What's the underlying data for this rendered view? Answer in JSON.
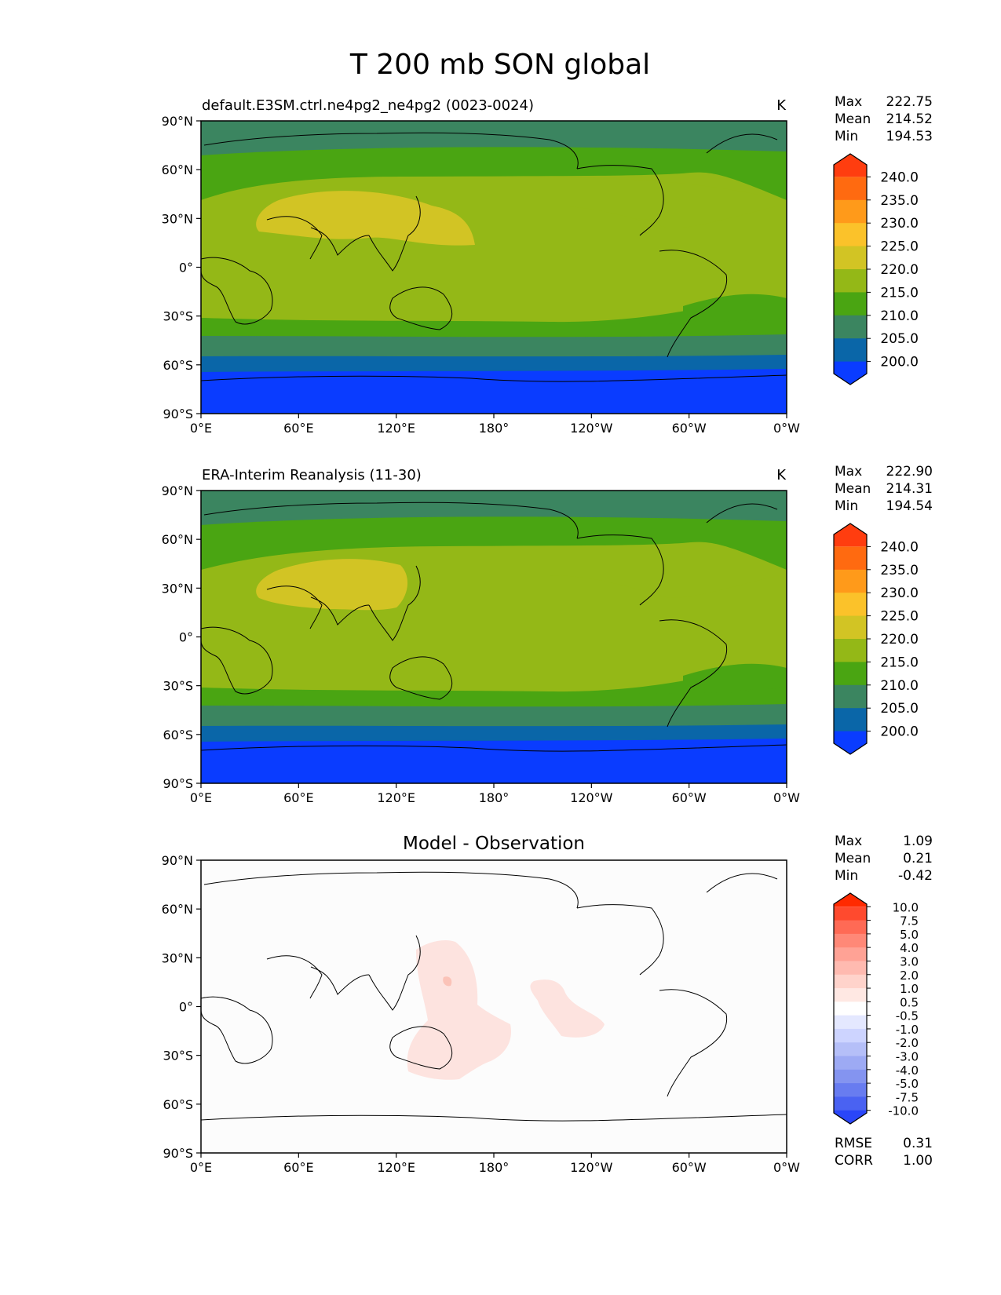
{
  "figure": {
    "title": "T 200 mb SON global"
  },
  "axes": {
    "lon_ticks": [
      "0°E",
      "60°E",
      "120°E",
      "180°",
      "120°W",
      "60°W",
      "0°W"
    ],
    "lat_ticks": [
      "90°N",
      "60°N",
      "30°N",
      "0°",
      "30°S",
      "60°S",
      "90°S"
    ]
  },
  "chart_data": [
    {
      "type": "heatmap",
      "panel": "test",
      "title": "default.E3SM.ctrl.ne4pg2_ne4pg2 (0023-0024)",
      "units": "K",
      "stats": {
        "labels": [
          "Max",
          "Mean",
          "Min"
        ],
        "values": [
          "222.75",
          "214.52",
          "194.53"
        ]
      },
      "colorbar": {
        "labels": [
          "240.0",
          "235.0",
          "230.0",
          "225.0",
          "220.0",
          "215.0",
          "210.0",
          "205.0",
          "200.0"
        ],
        "colors": [
          "#ff3d0f",
          "#ff6a10",
          "#ff9a1a",
          "#fbc22a",
          "#d2c424",
          "#94b817",
          "#4aa512",
          "#3b8560",
          "#0a66a8",
          "#0a3cff"
        ]
      }
    },
    {
      "type": "heatmap",
      "panel": "reference",
      "title": "ERA-Interim Reanalysis (11-30)",
      "units": "K",
      "stats": {
        "labels": [
          "Max",
          "Mean",
          "Min"
        ],
        "values": [
          "222.90",
          "214.31",
          "194.54"
        ]
      },
      "colorbar": {
        "labels": [
          "240.0",
          "235.0",
          "230.0",
          "225.0",
          "220.0",
          "215.0",
          "210.0",
          "205.0",
          "200.0"
        ],
        "colors": [
          "#ff3d0f",
          "#ff6a10",
          "#ff9a1a",
          "#fbc22a",
          "#d2c424",
          "#94b817",
          "#4aa512",
          "#3b8560",
          "#0a66a8",
          "#0a3cff"
        ]
      }
    },
    {
      "type": "heatmap",
      "panel": "difference",
      "title": "Model - Observation",
      "stats": {
        "labels": [
          "Max",
          "Mean",
          "Min"
        ],
        "values": [
          "1.09",
          "0.21",
          "-0.42"
        ]
      },
      "metrics": {
        "labels": [
          "RMSE",
          "CORR"
        ],
        "values": [
          "0.31",
          "1.00"
        ]
      },
      "colorbar": {
        "labels": [
          "10.0",
          "7.5",
          "5.0",
          "4.0",
          "3.0",
          "2.0",
          "1.0",
          "0.5",
          "-0.5",
          "-1.0",
          "-2.0",
          "-3.0",
          "-4.0",
          "-5.0",
          "-7.5",
          "-10.0"
        ],
        "colors": [
          "#ff2a00",
          "#ff4a2e",
          "#ff6a55",
          "#ff8877",
          "#ffa295",
          "#ffbab0",
          "#ffd3cb",
          "#ffe8e3",
          "#ffffff",
          "#e4e8ff",
          "#cdd4ff",
          "#b5bff8",
          "#9daaf4",
          "#8494f0",
          "#687cf0",
          "#4a62f2",
          "#2a46f8"
        ]
      }
    }
  ]
}
